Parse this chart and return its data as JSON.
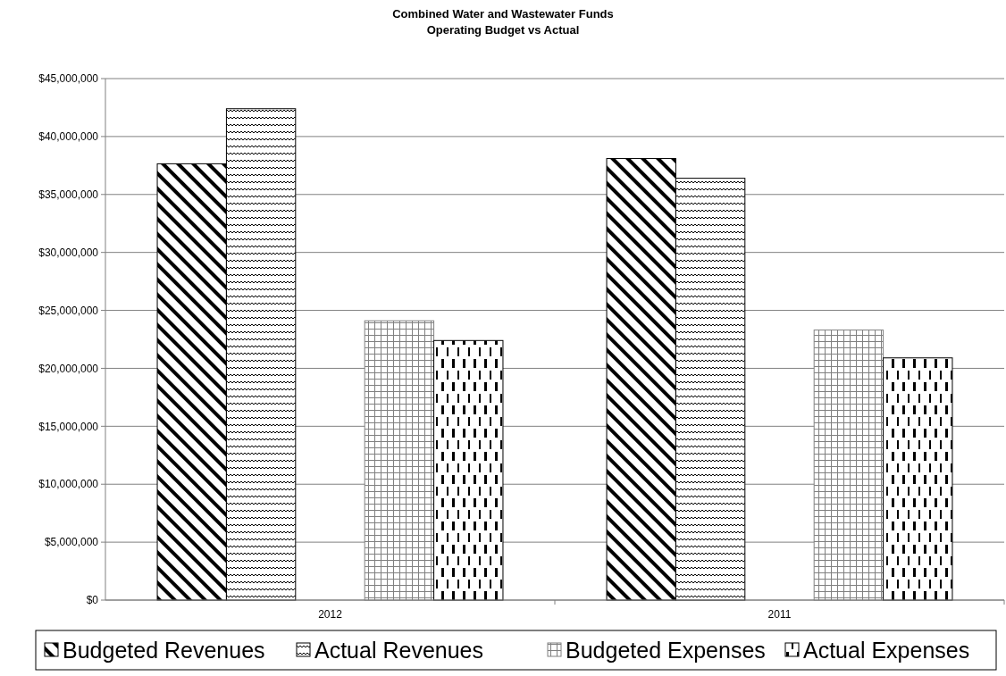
{
  "chart_data": {
    "type": "bar",
    "title": "Combined Water and Wastewater Funds\nOperating Budget vs Actual",
    "categories": [
      "2012",
      "2011"
    ],
    "series": [
      {
        "name": "Budgeted Revenues",
        "color": "#000000",
        "values": [
          37650000,
          38100000
        ]
      },
      {
        "name": "Actual Revenues",
        "color": "#000000",
        "values": [
          42400000,
          36400000
        ]
      },
      {
        "name": "Budgeted Expenses",
        "color": "#808080",
        "values": [
          24100000,
          23300000
        ]
      },
      {
        "name": "Actual Expenses",
        "color": "#000000",
        "values": [
          22400000,
          20900000
        ]
      }
    ],
    "ylim": [
      0,
      45000000
    ],
    "yticks": [
      {
        "value": 0,
        "label": "$0"
      },
      {
        "value": 5000000,
        "label": "$5,000,000"
      },
      {
        "value": 10000000,
        "label": "$10,000,000"
      },
      {
        "value": 15000000,
        "label": "$15,000,000"
      },
      {
        "value": 20000000,
        "label": "$20,000,000"
      },
      {
        "value": 25000000,
        "label": "$25,000,000"
      },
      {
        "value": 30000000,
        "label": "$30,000,000"
      },
      {
        "value": 35000000,
        "label": "$35,000,000"
      },
      {
        "value": 40000000,
        "label": "$40,000,000"
      },
      {
        "value": 45000000,
        "label": "$45,000,000"
      }
    ],
    "grid": "y",
    "legend": "bottom"
  }
}
